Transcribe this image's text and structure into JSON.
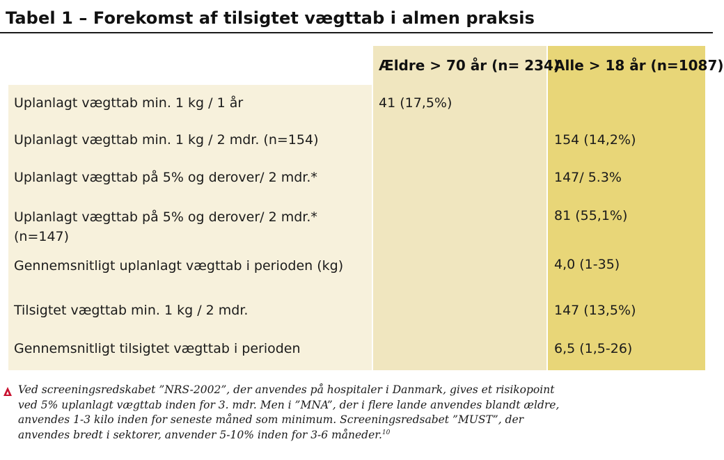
{
  "title": "Tabel 1 – Forekomst af tilsigtet vægttab i almen praksis",
  "columns": {
    "a": "Ældre > 70 år (n= 234)",
    "b": "Alle > 18 år (n=1087)"
  },
  "rows": [
    {
      "label": "Uplanlagt vægttab min. 1 kg / 1 år",
      "a": "41 (17,5%)",
      "b": ""
    },
    {
      "label": "Uplanlagt vægttab min. 1 kg / 2 mdr. (n=154)",
      "a": "",
      "b": "154 (14,2%)"
    },
    {
      "label": "Uplanlagt vægttab på 5% og derover/ 2 mdr.*",
      "a": "",
      "b": "147/ 5.3%"
    },
    {
      "label": "Uplanlagt vægttab på 5% og derover/ 2 mdr.* (n=147)",
      "a": "",
      "b": "81 (55,1%)"
    },
    {
      "label": "Gennemsnitligt uplanlagt vægttab i perioden (kg)",
      "a": "",
      "b": "4,0 (1-35)"
    },
    {
      "label": "Tilsigtet vægttab min. 1 kg / 2 mdr.",
      "a": "",
      "b": "147 (13,5%)"
    },
    {
      "label": "Gennemsnitligt tilsigtet vægttab i perioden",
      "a": "",
      "b": "6,5 (1,5-26)"
    }
  ],
  "footnote": {
    "icon": "warning-triangle-icon",
    "text": "Ved screeningsredskabet ”NRS-2002”, der anvendes på hospitaler i Danmark, gives et risikopoint ved 5% uplanlagt vægttab inden for 3. mdr. Men i ”MNA”, der i flere lande anvendes blandt ældre, anvendes 1-3 kilo inden for seneste måned som minimum. Screeningsredsabet ”MUST”, der anvendes bredt i sektorer, anvender 5-10% inden for 3-6 måneder.",
    "ref": "10"
  },
  "colors": {
    "label_bg": "#f7f1dc",
    "col_a_bg": "#f0e6bf",
    "col_b_bg": "#e8d678",
    "accent": "#c8102e"
  }
}
